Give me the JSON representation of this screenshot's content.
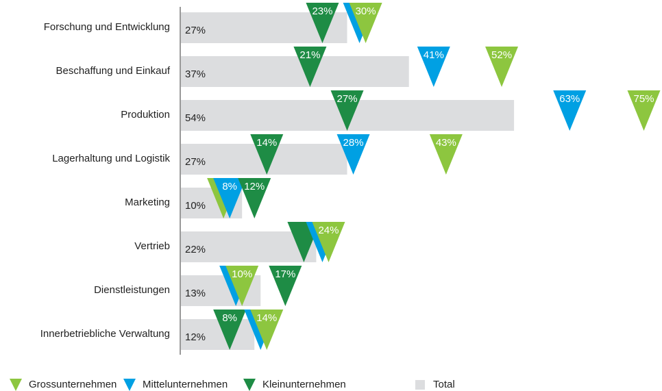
{
  "chart_data": {
    "type": "bar",
    "categories": [
      "Forschung und Entwicklung",
      "Beschaffung und Einkauf",
      "Produktion",
      "Lagerhaltung und Logistik",
      "Marketing",
      "Vertrieb",
      "Dienstleistungen",
      "Innerbetriebliche Verwaltung"
    ],
    "total": {
      "name": "Total",
      "color": "#dcdddf",
      "values": [
        27,
        37,
        54,
        27,
        10,
        22,
        13,
        12
      ],
      "value_labels": [
        "27%",
        "37%",
        "54%",
        "27%",
        "10%",
        "22%",
        "13%",
        "12%"
      ]
    },
    "series": [
      {
        "name": "Grossunternehmen",
        "color": "#8dc63f",
        "values": [
          30,
          52,
          75,
          43,
          7,
          24,
          10,
          14
        ],
        "value_labels": [
          "30%",
          "52%",
          "75%",
          "43%",
          null,
          "24%",
          "10%",
          "14%"
        ]
      },
      {
        "name": "Mittelunternehmen",
        "color": "#00a0e3",
        "values": [
          29,
          41,
          63,
          28,
          8,
          23,
          9,
          13
        ],
        "value_labels": [
          null,
          "41%",
          "63%",
          "28%",
          "8%",
          null,
          null,
          null
        ]
      },
      {
        "name": "Kleinunternehmen",
        "color": "#1e8c45",
        "values": [
          23,
          21,
          27,
          14,
          12,
          20,
          17,
          8
        ],
        "value_labels": [
          "23%",
          "21%",
          "27%",
          "14%",
          "12%",
          null,
          "17%",
          "8%"
        ]
      }
    ]
  }
}
